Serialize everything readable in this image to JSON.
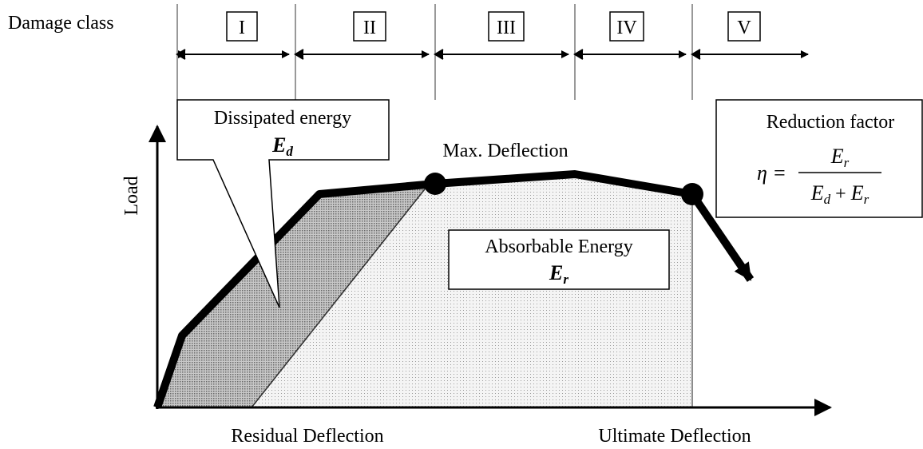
{
  "damage_class": {
    "label": "Damage class",
    "classes": [
      "I",
      "II",
      "III",
      "IV",
      "V"
    ]
  },
  "dissipated_energy": {
    "label": "Dissipated energy",
    "symbol": "E",
    "sub": "d"
  },
  "max_deflection": "Max. Deflection",
  "reduction_factor": {
    "label": "Reduction factor",
    "lhs": "η =",
    "numerator": {
      "symbol": "E",
      "sub": "r"
    },
    "denominator": [
      {
        "symbol": "E",
        "sub": "d"
      },
      "+",
      {
        "symbol": "E",
        "sub": "r"
      }
    ]
  },
  "absorbable_energy": {
    "label": "Absorbable Energy",
    "symbol": "E",
    "sub": "r"
  },
  "y_axis_label": "Load",
  "x_labels": [
    "Residual Deflection",
    "Ultimate Deflection"
  ]
}
